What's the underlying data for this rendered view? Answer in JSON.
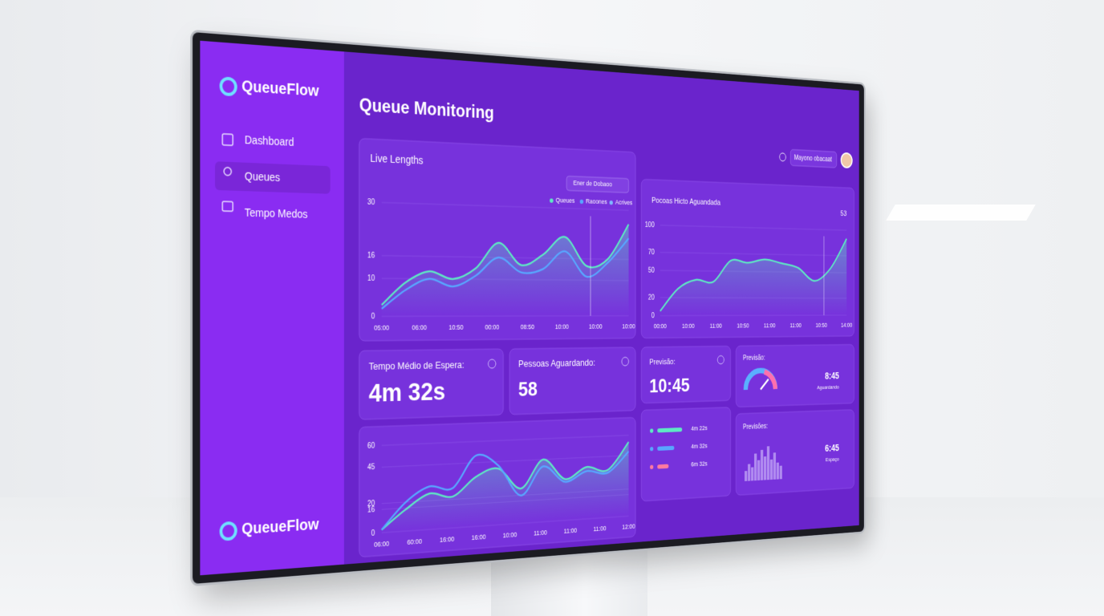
{
  "brand": "QueueFlow",
  "nav": [
    "Dashboard",
    "Queues",
    "Tempo Medos"
  ],
  "footer_brand": "QueueFlow",
  "page_title": "Queue Monitoring",
  "topbar": {
    "dropdown": "Mayono obacaat"
  },
  "live_lengths": {
    "title": "Live Lengths",
    "filter": "Ener de Dobaoo",
    "legend": [
      "Queues",
      "Raoones",
      "Acrives"
    ],
    "ylim": [
      0,
      30
    ],
    "yticks": [
      0,
      10,
      16,
      30
    ],
    "x_labels": [
      "05:00",
      "06:00",
      "10:50",
      "00:00",
      "08:50",
      "10:00",
      "10:00",
      "10:00"
    ],
    "series": [
      {
        "color": "#5ee8c4",
        "values": [
          3,
          9,
          12,
          10,
          13,
          20,
          14,
          17,
          22,
          14,
          16,
          26
        ]
      },
      {
        "color": "#58a6ff",
        "values": [
          2,
          7,
          10,
          8,
          11,
          16,
          12,
          13,
          18,
          11,
          15,
          22
        ]
      }
    ]
  },
  "waiting_chart": {
    "title": "Pocoas Hicto Aguandada",
    "corner": "53",
    "ylim": [
      0,
      100
    ],
    "yticks": [
      0,
      20,
      50,
      70,
      100
    ],
    "x_labels": [
      "00:00",
      "10:00",
      "11:00",
      "10:50",
      "11:00",
      "11:00",
      "10:50",
      "14:00"
    ],
    "series": [
      {
        "color": "#5ee8c4",
        "values": [
          5,
          30,
          40,
          38,
          62,
          60,
          64,
          60,
          55,
          40,
          55,
          90
        ]
      }
    ]
  },
  "kpis": [
    {
      "label": "Tempo Médio de Espera:",
      "value": "4m 32s"
    },
    {
      "label": "Pessoas Aguardando:",
      "value": "58"
    },
    {
      "label": "Previsão:",
      "value": "10:45"
    }
  ],
  "gauge_card": {
    "label": "Previsão:",
    "value": "8:45",
    "sub": "Aguardando"
  },
  "histogram_card": {
    "label": "Previsões:",
    "value": "6:45",
    "sub": "Espaço",
    "bars": [
      3,
      5,
      4,
      8,
      6,
      9,
      7,
      10,
      6,
      8,
      5,
      4
    ]
  },
  "list": [
    "4m 22s",
    "4m 32s",
    "6m 32s"
  ],
  "bottom_chart": {
    "ylim": [
      0,
      60
    ],
    "yticks": [
      0,
      16,
      20,
      45,
      60
    ],
    "x_labels": [
      "06:00",
      "60:00",
      "16:00",
      "16:00",
      "10:00",
      "11:00",
      "11:00",
      "11:00",
      "12:00"
    ],
    "series": [
      {
        "color": "#5ee8c4",
        "values": [
          2,
          15,
          25,
          22,
          35,
          40,
          25,
          45,
          30,
          38,
          35,
          55
        ]
      },
      {
        "color": "#58a6ff",
        "values": [
          2,
          20,
          30,
          28,
          50,
          42,
          20,
          40,
          28,
          35,
          33,
          48
        ]
      }
    ]
  }
}
